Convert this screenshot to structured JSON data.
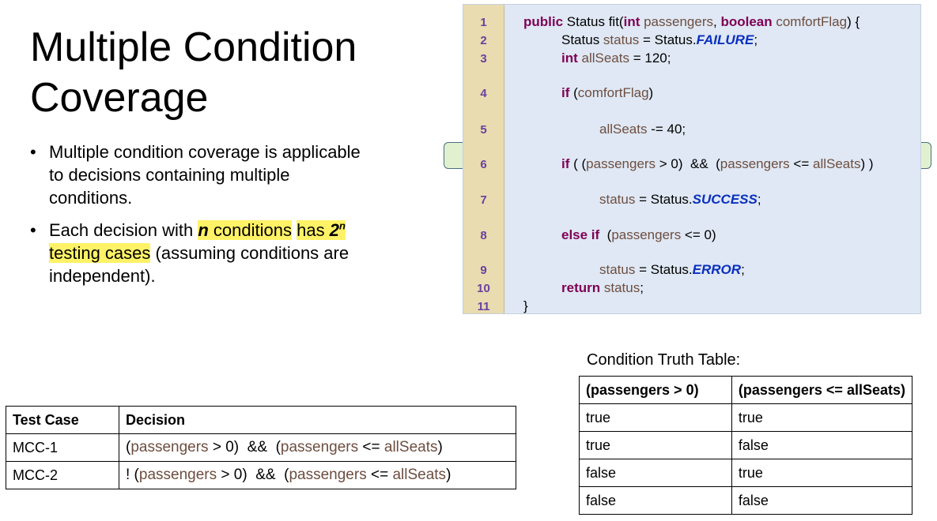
{
  "title": "Multiple Condition Coverage",
  "bullets": [
    {
      "text": "Multiple condition coverage is applicable to decisions containing multiple conditions."
    },
    {
      "parts": [
        "Each decision with ",
        "n",
        " conditions",
        "has ",
        "2",
        "n",
        " testing cases",
        " (assuming conditions are independent)."
      ]
    }
  ],
  "code": {
    "lines": [
      {
        "number": 1,
        "tokens": [
          "public",
          " Status fit(",
          "int",
          " passengers",
          ", ",
          "boolean",
          " comfortFlag",
          ") {"
        ]
      },
      {
        "number": 2,
        "tokens": [
          "Status ",
          "status",
          " = Status.",
          "FAILURE",
          ";"
        ]
      },
      {
        "number": 3,
        "tokens": [
          "int",
          " allSeats",
          " = 120;"
        ]
      },
      {
        "number": 4,
        "tokens": [
          "if",
          " (",
          "comfortFlag",
          ")"
        ]
      },
      {
        "number": 5,
        "tokens": [
          "allSeats",
          " -= 40;"
        ]
      },
      {
        "number": 6,
        "tokens": [
          "if",
          " ( (",
          "passengers",
          " > 0)  &&  (",
          "passengers",
          " <= ",
          "allSeats",
          ") )"
        ]
      },
      {
        "number": 7,
        "tokens": [
          "status",
          " = Status.",
          "SUCCESS",
          ";"
        ]
      },
      {
        "number": 8,
        "tokens": [
          "else if",
          "  (",
          "passengers",
          " <= 0)"
        ]
      },
      {
        "number": 9,
        "tokens": [
          "status",
          " = Status.",
          "ERROR",
          ";"
        ]
      },
      {
        "number": 10,
        "tokens": [
          "return",
          " status",
          ";"
        ]
      },
      {
        "number": 11,
        "tokens": [
          "}"
        ]
      }
    ]
  },
  "decision_table": {
    "header": [
      "Test Case",
      "Decision"
    ],
    "rows": [
      [
        "MCC-1",
        [
          "(",
          "passengers",
          " > 0)  &&  (",
          "passengers",
          " <= ",
          "allSeats",
          ")"
        ]
      ],
      [
        "MCC-2",
        [
          "! (",
          "passengers",
          " > 0)  &&  (",
          "passengers",
          " <= ",
          "allSeats",
          ")"
        ]
      ]
    ]
  },
  "truth_table": {
    "caption": "Condition Truth Table:",
    "header": [
      "(passengers > 0)",
      "(passengers <= allSeats)"
    ],
    "rows": [
      [
        "true",
        "true"
      ],
      [
        "true",
        "false"
      ],
      [
        "false",
        "true"
      ],
      [
        "false",
        "false"
      ]
    ]
  }
}
